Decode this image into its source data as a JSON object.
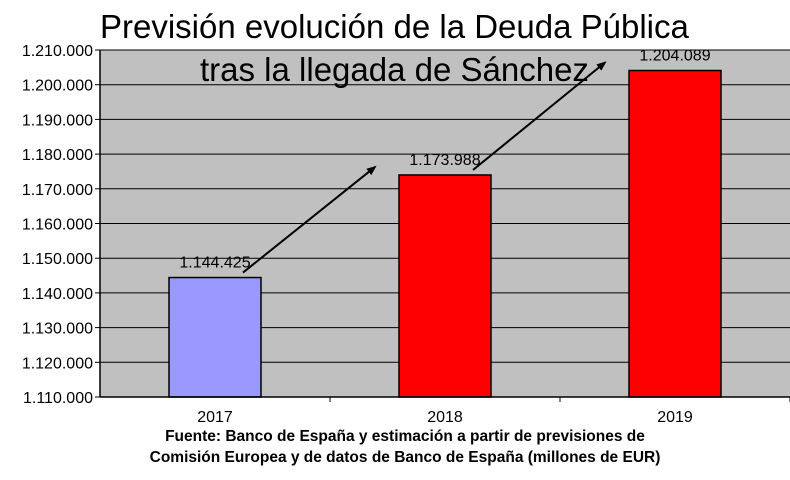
{
  "chart_data": {
    "type": "bar",
    "title": "Previsión evolución de la Deuda Pública",
    "subtitle": "tras la llegada de Sánchez",
    "categories": [
      "2017",
      "2018",
      "2019"
    ],
    "values": [
      1144425,
      1173988,
      1204089
    ],
    "value_labels": [
      "1.144.425",
      "1.173.988",
      "1.204.089"
    ],
    "bar_colors": [
      "#9999ff",
      "#ff0000",
      "#ff0000"
    ],
    "ylim": [
      1110000,
      1210000
    ],
    "y_ticks": [
      1110000,
      1120000,
      1130000,
      1140000,
      1150000,
      1160000,
      1170000,
      1180000,
      1190000,
      1200000,
      1210000
    ],
    "y_tick_labels": [
      "1.110.000",
      "1.120.000",
      "1.130.000",
      "1.140.000",
      "1.150.000",
      "1.160.000",
      "1.170.000",
      "1.180.000",
      "1.190.000",
      "1.200.000",
      "1.210.000"
    ],
    "grid": true,
    "plot_background": "#c0c0c0",
    "legend": "none",
    "xlabel": "",
    "ylabel": ""
  },
  "source": {
    "line1": "Fuente: Banco de España y estimación a partir de previsiones de",
    "line2": "Comisión Europea y de datos de Banco de España (millones de EUR)"
  }
}
